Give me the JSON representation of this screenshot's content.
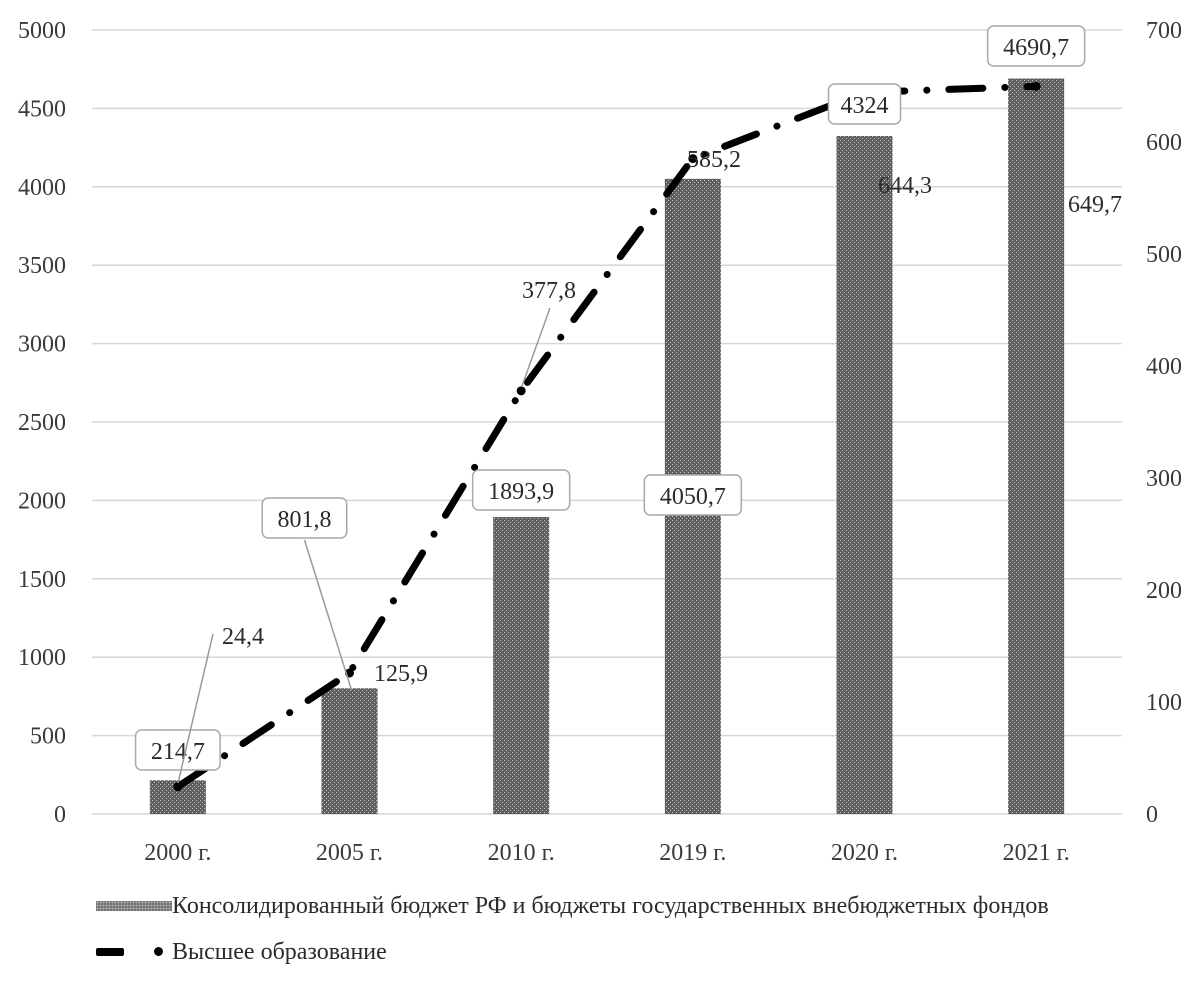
{
  "chart_data": {
    "type": "bar",
    "categories": [
      "2000 г.",
      "2005 г.",
      "2010 г.",
      "2019 г.",
      "2020 г.",
      "2021 г."
    ],
    "series": [
      {
        "name": "Консолидированный бюджет РФ и бюджеты государственных внебюджетных фондов",
        "type": "bar",
        "axis": "left",
        "values": [
          214.7,
          801.8,
          1893.9,
          4050.7,
          4324,
          4690.7
        ],
        "labels": [
          "214,7",
          "801,8",
          "1893,9",
          "4050,7",
          "4324",
          "4690,7"
        ],
        "color": "#555555"
      },
      {
        "name": "Высшее образование",
        "type": "line",
        "axis": "right",
        "values": [
          24.4,
          125.9,
          377.8,
          585.2,
          644.3,
          649.7
        ],
        "labels": [
          "24,4",
          "125,9",
          "377,8",
          "585,2",
          "644,3",
          "649,7"
        ],
        "color": "#000000"
      }
    ],
    "y_left": {
      "min": 0,
      "max": 5000,
      "ticks": [
        0,
        500,
        1000,
        1500,
        2000,
        2500,
        3000,
        3500,
        4000,
        4500,
        5000
      ]
    },
    "y_right": {
      "min": 0,
      "max": 700,
      "ticks": [
        0,
        100,
        200,
        300,
        400,
        500,
        600,
        700
      ]
    },
    "grid": true,
    "legend_position": "bottom"
  },
  "legend": {
    "bar_label": "Консолидированный бюджет РФ и бюджеты государственных внебюджетных фондов",
    "line_label": "Высшее образование"
  }
}
